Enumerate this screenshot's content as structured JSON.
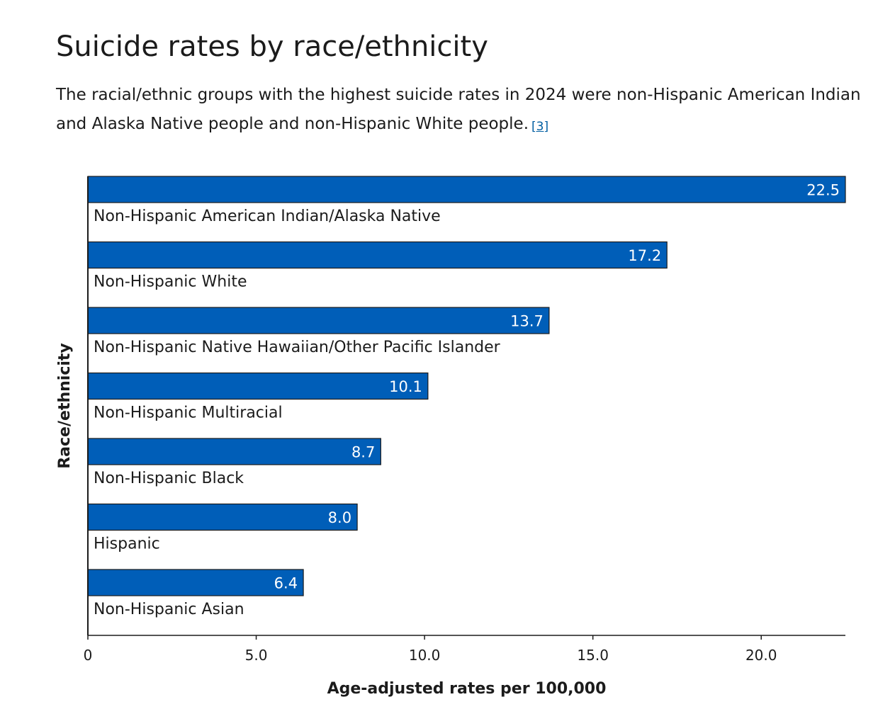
{
  "page": {
    "title": "Suicide rates by race/ethnicity",
    "intro": "The racial/ethnic groups with the highest suicide rates in 2024 were non-Hispanic American Indian and Alaska Native people and non-Hispanic White people.",
    "reference_label": "[3]"
  },
  "colors": {
    "bar_fill": "#005eb8",
    "bar_stroke": "#1b1b1b",
    "text": "#1b1b1b",
    "link": "#005ea2"
  },
  "chart_data": {
    "type": "bar",
    "orientation": "horizontal",
    "categories": [
      "Non-Hispanic American Indian/Alaska Native",
      "Non-Hispanic White",
      "Non-Hispanic Native Hawaiian/Other Pacific Islander",
      "Non-Hispanic Multiracial",
      "Non-Hispanic Black",
      "Hispanic",
      "Non-Hispanic Asian"
    ],
    "values": [
      22.5,
      17.2,
      13.7,
      10.1,
      8.7,
      8.0,
      6.4
    ],
    "value_labels": [
      "22.5",
      "17.2",
      "13.7",
      "10.1",
      "8.7",
      "8.0",
      "6.4"
    ],
    "xlabel": "Age-adjusted rates per 100,000",
    "ylabel": "Race/ethnicity",
    "xlim": [
      0,
      22.5
    ],
    "xticks": [
      0,
      5,
      10,
      15,
      20
    ],
    "xtick_labels": [
      "0",
      "5.0",
      "10.0",
      "15.0",
      "20.0"
    ],
    "grid": false,
    "legend": "none"
  }
}
